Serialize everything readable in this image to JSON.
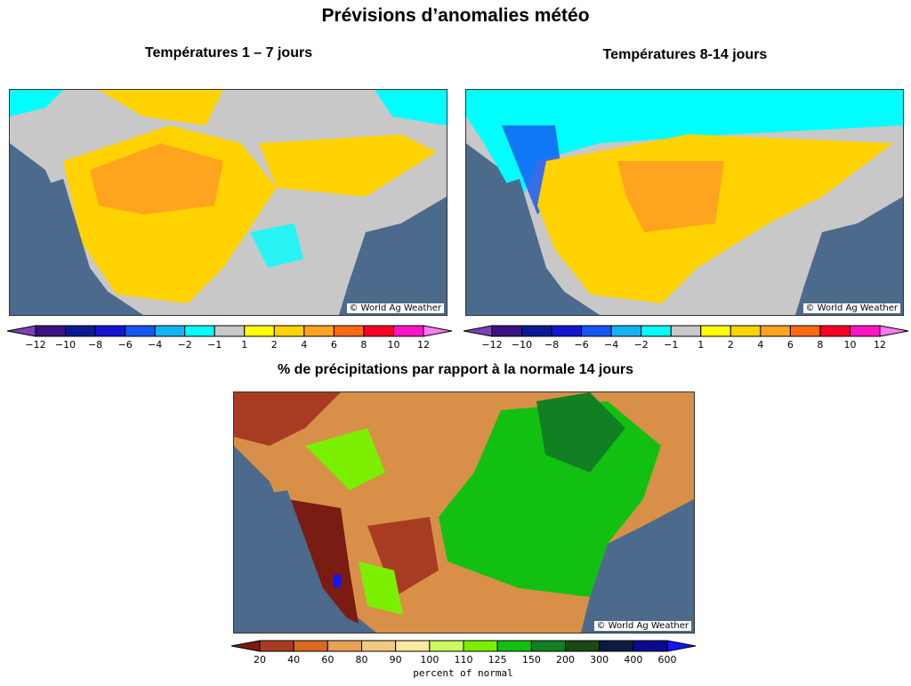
{
  "title": "Prévisions d’anomalies météo",
  "temp_left": {
    "title": "Températures 1 – 7 jours",
    "credit": "© World Ag Weather"
  },
  "temp_right": {
    "title": "Températures 8-14 jours",
    "credit": "© World Ag Weather"
  },
  "precip": {
    "title": "% de précipitations par rapport à la normale 14 jours",
    "credit": "© World Ag Weather",
    "unit_label": "percent of normal"
  },
  "chart_data": [
    {
      "type": "heatmap",
      "title": "Températures 1 – 7 jours",
      "legend_labels": [
        "−12",
        "−10",
        "−8",
        "−6",
        "−4",
        "−2",
        "−1",
        "1",
        "2",
        "4",
        "6",
        "8",
        "10",
        "12"
      ],
      "legend_colors": [
        "#7a40b8",
        "#3a1282",
        "#0c1a92",
        "#1414d2",
        "#1456f2",
        "#10b4f4",
        "#00ffff",
        "#c8c8c8",
        "#ffff00",
        "#ffd200",
        "#ffa41e",
        "#ff6a12",
        "#ff0022",
        "#ff14c4",
        "#ff78f4"
      ]
    },
    {
      "type": "heatmap",
      "title": "Températures 8-14 jours",
      "legend_labels": [
        "−12",
        "−10",
        "−8",
        "−6",
        "−4",
        "−2",
        "−1",
        "1",
        "2",
        "4",
        "6",
        "8",
        "10",
        "12"
      ],
      "legend_colors": [
        "#7a40b8",
        "#3a1282",
        "#0c1a92",
        "#1414d2",
        "#1456f2",
        "#10b4f4",
        "#00ffff",
        "#c8c8c8",
        "#ffff00",
        "#ffd200",
        "#ffa41e",
        "#ff6a12",
        "#ff0022",
        "#ff14c4",
        "#ff78f4"
      ]
    },
    {
      "type": "heatmap",
      "title": "% de précipitations par rapport à la normale 14 jours",
      "legend_labels": [
        "20",
        "40",
        "60",
        "80",
        "90",
        "100",
        "110",
        "125",
        "150",
        "200",
        "300",
        "400",
        "600"
      ],
      "legend_colors": [
        "#7a1c12",
        "#a83c22",
        "#d86a20",
        "#e8a052",
        "#f5c882",
        "#fde8a0",
        "#ccfa62",
        "#7af000",
        "#12c012",
        "#108022",
        "#1a4a12",
        "#0a1a42",
        "#0a0a92",
        "#1414ff"
      ],
      "xlabel": "percent of normal"
    }
  ]
}
